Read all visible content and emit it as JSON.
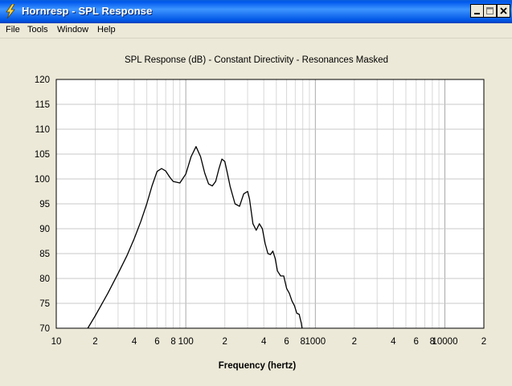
{
  "window": {
    "title": "Hornresp - SPL Response",
    "icon": "lightning-bolt-icon",
    "controls": [
      "minimize-icon",
      "maximize-icon",
      "close-icon"
    ]
  },
  "menu": {
    "items": [
      {
        "label": "File"
      },
      {
        "label": "Tools"
      },
      {
        "label": "Window"
      },
      {
        "label": "Help"
      }
    ]
  },
  "chart_data": {
    "type": "line",
    "title": "SPL Response (dB) - Constant Directivity - Resonances Masked",
    "xlabel": "Frequency (hertz)",
    "ylabel": "",
    "x_scale": "log",
    "xlim": [
      10,
      20000
    ],
    "ylim": [
      70,
      120
    ],
    "grid": true,
    "x_tick_labels": [
      {
        "value": 10,
        "label": "10"
      },
      {
        "value": 20,
        "label": "2"
      },
      {
        "value": 40,
        "label": "4"
      },
      {
        "value": 60,
        "label": "6"
      },
      {
        "value": 80,
        "label": "8"
      },
      {
        "value": 100,
        "label": "100"
      },
      {
        "value": 200,
        "label": "2"
      },
      {
        "value": 400,
        "label": "4"
      },
      {
        "value": 600,
        "label": "6"
      },
      {
        "value": 800,
        "label": "8"
      },
      {
        "value": 1000,
        "label": "1000"
      },
      {
        "value": 2000,
        "label": "2"
      },
      {
        "value": 4000,
        "label": "4"
      },
      {
        "value": 6000,
        "label": "6"
      },
      {
        "value": 8000,
        "label": "8"
      },
      {
        "value": 10000,
        "label": "10000"
      },
      {
        "value": 20000,
        "label": "2"
      }
    ],
    "y_ticks": [
      70,
      75,
      80,
      85,
      90,
      95,
      100,
      105,
      110,
      115,
      120
    ],
    "series": [
      {
        "color": "#000000",
        "x": [
          17.5,
          20,
          25,
          30,
          35,
          40,
          45,
          50,
          55,
          60,
          65,
          70,
          75,
          80,
          90,
          100,
          110,
          120,
          130,
          140,
          150,
          160,
          170,
          180,
          190,
          200,
          210,
          220,
          240,
          260,
          280,
          300,
          310,
          330,
          350,
          370,
          390,
          410,
          430,
          450,
          470,
          490,
          510,
          540,
          570,
          600,
          630,
          660,
          690,
          720,
          750,
          780,
          790
        ],
        "y": [
          70,
          72.5,
          77,
          81,
          84.5,
          88,
          91.5,
          95,
          98.7,
          101.5,
          102.1,
          101.6,
          100.4,
          99.5,
          99.2,
          101,
          104.5,
          106.5,
          104.5,
          101.2,
          99,
          98.6,
          99.5,
          102,
          104,
          103.5,
          101,
          98.5,
          95,
          94.5,
          97,
          97.5,
          96,
          91,
          89.7,
          91,
          90,
          87,
          85,
          84.8,
          85.5,
          84,
          81.5,
          80.5,
          80.5,
          78,
          77,
          75.5,
          74.5,
          73,
          72.8,
          71,
          70
        ]
      }
    ]
  }
}
